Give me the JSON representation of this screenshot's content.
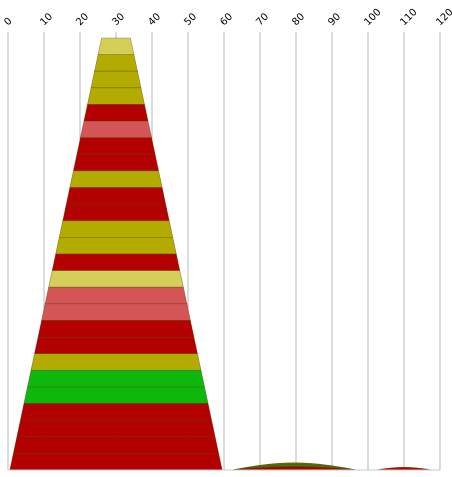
{
  "chart_data": {
    "type": "area",
    "x_ticks": [
      0,
      10,
      20,
      30,
      40,
      50,
      60,
      70,
      80,
      90,
      100,
      110,
      120
    ],
    "xlim": [
      0,
      120
    ],
    "grid": true,
    "funnel": {
      "x_center": 30,
      "top_half_width": 4,
      "bottom_half_width": 29.5,
      "bands": [
        {
          "color": "#d4cf58"
        },
        {
          "color": "#b3ac00"
        },
        {
          "color": "#b3ac00"
        },
        {
          "color": "#b3ac00"
        },
        {
          "color": "#b30000"
        },
        {
          "color": "#d35555"
        },
        {
          "color": "#b30000"
        },
        {
          "color": "#b30000"
        },
        {
          "color": "#b3ac00"
        },
        {
          "color": "#b30000"
        },
        {
          "color": "#b30000"
        },
        {
          "color": "#b3ac00"
        },
        {
          "color": "#b3ac00"
        },
        {
          "color": "#b30000"
        },
        {
          "color": "#d4cf58"
        },
        {
          "color": "#d35555"
        },
        {
          "color": "#d35555"
        },
        {
          "color": "#b30000"
        },
        {
          "color": "#b30000"
        },
        {
          "color": "#b3ac00"
        },
        {
          "color": "#0cb80c"
        },
        {
          "color": "#0cb80c"
        },
        {
          "color": "#b30000"
        },
        {
          "color": "#b30000"
        },
        {
          "color": "#b30000"
        },
        {
          "color": "#b30000"
        }
      ]
    },
    "small_mounds": [
      {
        "x_start": 62,
        "x_end": 97,
        "peak": 1.2,
        "layers": [
          {
            "color": "#6b6b00",
            "fraction": 1.0
          },
          {
            "color": "#0a9a0a",
            "fraction": 0.75
          },
          {
            "color": "#b30000",
            "fraction": 0.5
          }
        ]
      },
      {
        "x_start": 102,
        "x_end": 118,
        "peak": 0.45,
        "layers": [
          {
            "color": "#b30000",
            "fraction": 1.0
          }
        ]
      }
    ]
  }
}
